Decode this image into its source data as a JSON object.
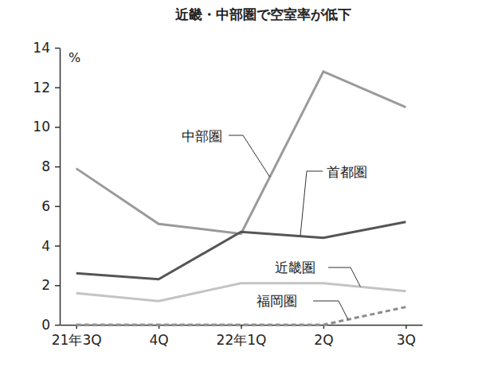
{
  "chart_data": {
    "type": "line",
    "title": "近畿・中部圏で空室率が低下",
    "ylabel": "%",
    "categories": [
      "21年3Q",
      "4Q",
      "22年1Q",
      "2Q",
      "3Q"
    ],
    "series": [
      {
        "name": "中部圏",
        "color": "#9a9a9a",
        "line_style": "solid",
        "values": [
          7.9,
          5.1,
          4.6,
          12.8,
          11.0
        ]
      },
      {
        "name": "首都圏",
        "color": "#555555",
        "line_style": "solid",
        "values": [
          2.6,
          2.3,
          4.7,
          4.4,
          5.2
        ]
      },
      {
        "name": "近畿圏",
        "color": "#c4c4c4",
        "line_style": "solid",
        "values": [
          1.6,
          1.2,
          2.1,
          2.1,
          1.7
        ]
      },
      {
        "name": "福岡圏",
        "color": "#8c8c8c",
        "line_style": "dashed",
        "values": [
          0,
          0,
          0,
          0,
          0.9
        ]
      }
    ],
    "ylim": [
      0,
      14
    ],
    "yticks": [
      0,
      2,
      4,
      6,
      8,
      10,
      12,
      14
    ],
    "grid": false
  }
}
